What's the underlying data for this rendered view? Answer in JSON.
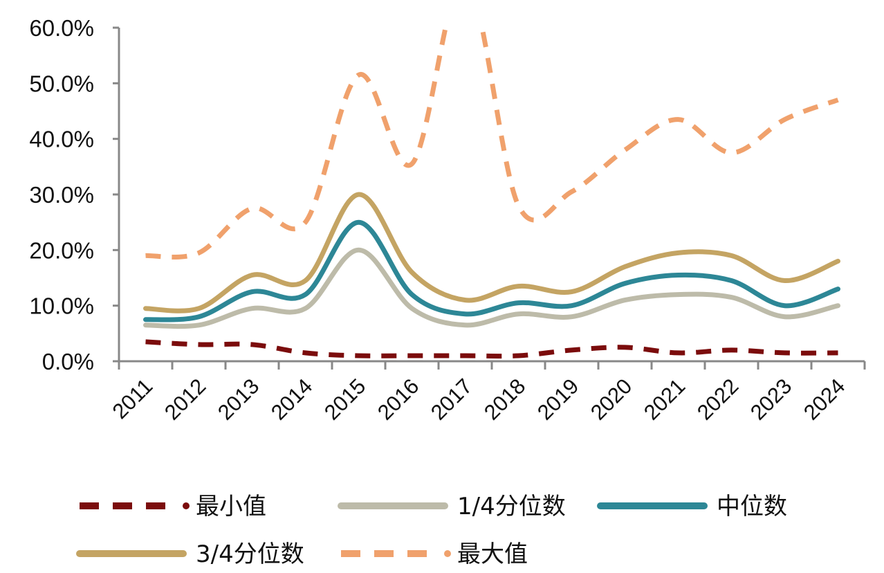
{
  "chart_data": {
    "type": "line",
    "categories": [
      "2011",
      "2012",
      "2013",
      "2014",
      "2015",
      "2016",
      "2017",
      "2018",
      "2019",
      "2020",
      "2021",
      "2022",
      "2023",
      "2024"
    ],
    "ylim": [
      0,
      60
    ],
    "y_ticks": [
      0,
      10,
      20,
      30,
      40,
      50,
      60
    ],
    "y_tick_labels": [
      "0.0%",
      "10.0%",
      "20.0%",
      "30.0%",
      "40.0%",
      "50.0%",
      "60.0%"
    ],
    "grid": false,
    "legend_position": "bottom",
    "series": [
      {
        "name": "最小值",
        "color": "#7B0C0C",
        "style": "dashed",
        "values": [
          3.5,
          3.0,
          3.0,
          1.5,
          1.0,
          1.0,
          1.0,
          1.0,
          2.0,
          2.5,
          1.5,
          2.0,
          1.5,
          1.5
        ]
      },
      {
        "name": "1/4分位数",
        "color": "#BDBBA9",
        "style": "solid",
        "values": [
          6.5,
          6.5,
          9.5,
          9.5,
          20.0,
          9.5,
          6.5,
          8.5,
          8.0,
          11.0,
          12.0,
          11.5,
          8.0,
          10.0
        ]
      },
      {
        "name": "中位数",
        "color": "#2D8796",
        "style": "solid",
        "values": [
          7.5,
          8.0,
          12.5,
          12.0,
          25.0,
          12.0,
          8.5,
          10.5,
          10.0,
          14.0,
          15.5,
          14.5,
          10.0,
          13.0
        ]
      },
      {
        "name": "3/4分位数",
        "color": "#C4A463",
        "style": "solid",
        "values": [
          9.5,
          9.5,
          15.5,
          14.5,
          30.0,
          16.0,
          11.0,
          13.5,
          12.5,
          17.0,
          19.5,
          19.0,
          14.5,
          18.0
        ]
      },
      {
        "name": "最大值",
        "color": "#F0A16C",
        "style": "dashed",
        "values": [
          19.0,
          19.5,
          27.5,
          25.0,
          51.5,
          35.5,
          69.0,
          28.0,
          30.5,
          38.0,
          43.5,
          37.5,
          43.5,
          47.0
        ]
      }
    ]
  }
}
